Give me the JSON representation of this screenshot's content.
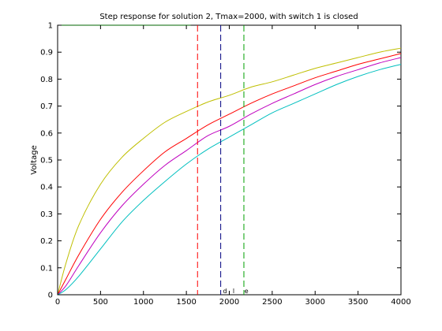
{
  "chart_data": {
    "type": "line",
    "title": "Step response for solution 2, Tmax=2000, with switch 1 is closed",
    "xlabel": "",
    "ylabel": "Voltage",
    "xlim": [
      0,
      4000
    ],
    "ylim": [
      0,
      1
    ],
    "xticks": [
      0,
      500,
      1000,
      1500,
      2000,
      2500,
      3000,
      3500,
      4000
    ],
    "yticks": [
      0,
      0.1,
      0.2,
      0.3,
      0.4,
      0.5,
      0.6,
      0.7,
      0.8,
      0.9,
      1
    ],
    "grid": false,
    "series": [
      {
        "color": "#bfbf00",
        "x": [
          0,
          100,
          250,
          500,
          750,
          1000,
          1250,
          1500,
          1750,
          2000,
          2250,
          2500,
          2750,
          3000,
          3250,
          3500,
          3750,
          4000
        ],
        "y": [
          0,
          0.12,
          0.26,
          0.41,
          0.51,
          0.58,
          0.64,
          0.68,
          0.715,
          0.74,
          0.77,
          0.79,
          0.815,
          0.84,
          0.86,
          0.88,
          0.9,
          0.915
        ]
      },
      {
        "color": "#ff0000",
        "x": [
          0,
          100,
          250,
          500,
          750,
          1000,
          1250,
          1500,
          1750,
          2000,
          2250,
          2500,
          2750,
          3000,
          3250,
          3500,
          3750,
          4000
        ],
        "y": [
          0,
          0.06,
          0.15,
          0.28,
          0.38,
          0.46,
          0.53,
          0.58,
          0.63,
          0.67,
          0.71,
          0.745,
          0.775,
          0.805,
          0.83,
          0.855,
          0.875,
          0.895
        ]
      },
      {
        "color": "#bf00bf",
        "x": [
          0,
          100,
          250,
          500,
          750,
          1000,
          1250,
          1500,
          1750,
          2000,
          2250,
          2500,
          2750,
          3000,
          3250,
          3500,
          3750,
          4000
        ],
        "y": [
          0,
          0.035,
          0.11,
          0.23,
          0.33,
          0.41,
          0.48,
          0.535,
          0.59,
          0.625,
          0.67,
          0.71,
          0.745,
          0.78,
          0.81,
          0.835,
          0.86,
          0.88
        ]
      },
      {
        "color": "#00bfbf",
        "x": [
          0,
          100,
          250,
          500,
          750,
          1000,
          1250,
          1500,
          1750,
          2000,
          2250,
          2500,
          2750,
          3000,
          3250,
          3500,
          3750,
          4000
        ],
        "y": [
          0,
          0.02,
          0.07,
          0.17,
          0.27,
          0.35,
          0.42,
          0.485,
          0.54,
          0.585,
          0.63,
          0.675,
          0.71,
          0.745,
          0.78,
          0.81,
          0.835,
          0.855
        ]
      },
      {
        "color": "#006400",
        "x": [
          0,
          1550
        ],
        "y": [
          1,
          1
        ]
      }
    ],
    "vlines": [
      {
        "x": 1630,
        "color": "#ff0000"
      },
      {
        "x": 1900,
        "color": "#000080"
      },
      {
        "x": 2170,
        "color": "#00a000"
      }
    ],
    "annotations": [
      {
        "text": "d",
        "x": 1950,
        "y": 0
      },
      {
        "text": "l",
        "x": 2050,
        "y": 0
      },
      {
        "text": "e",
        "x": 2200,
        "y": 0
      }
    ]
  }
}
